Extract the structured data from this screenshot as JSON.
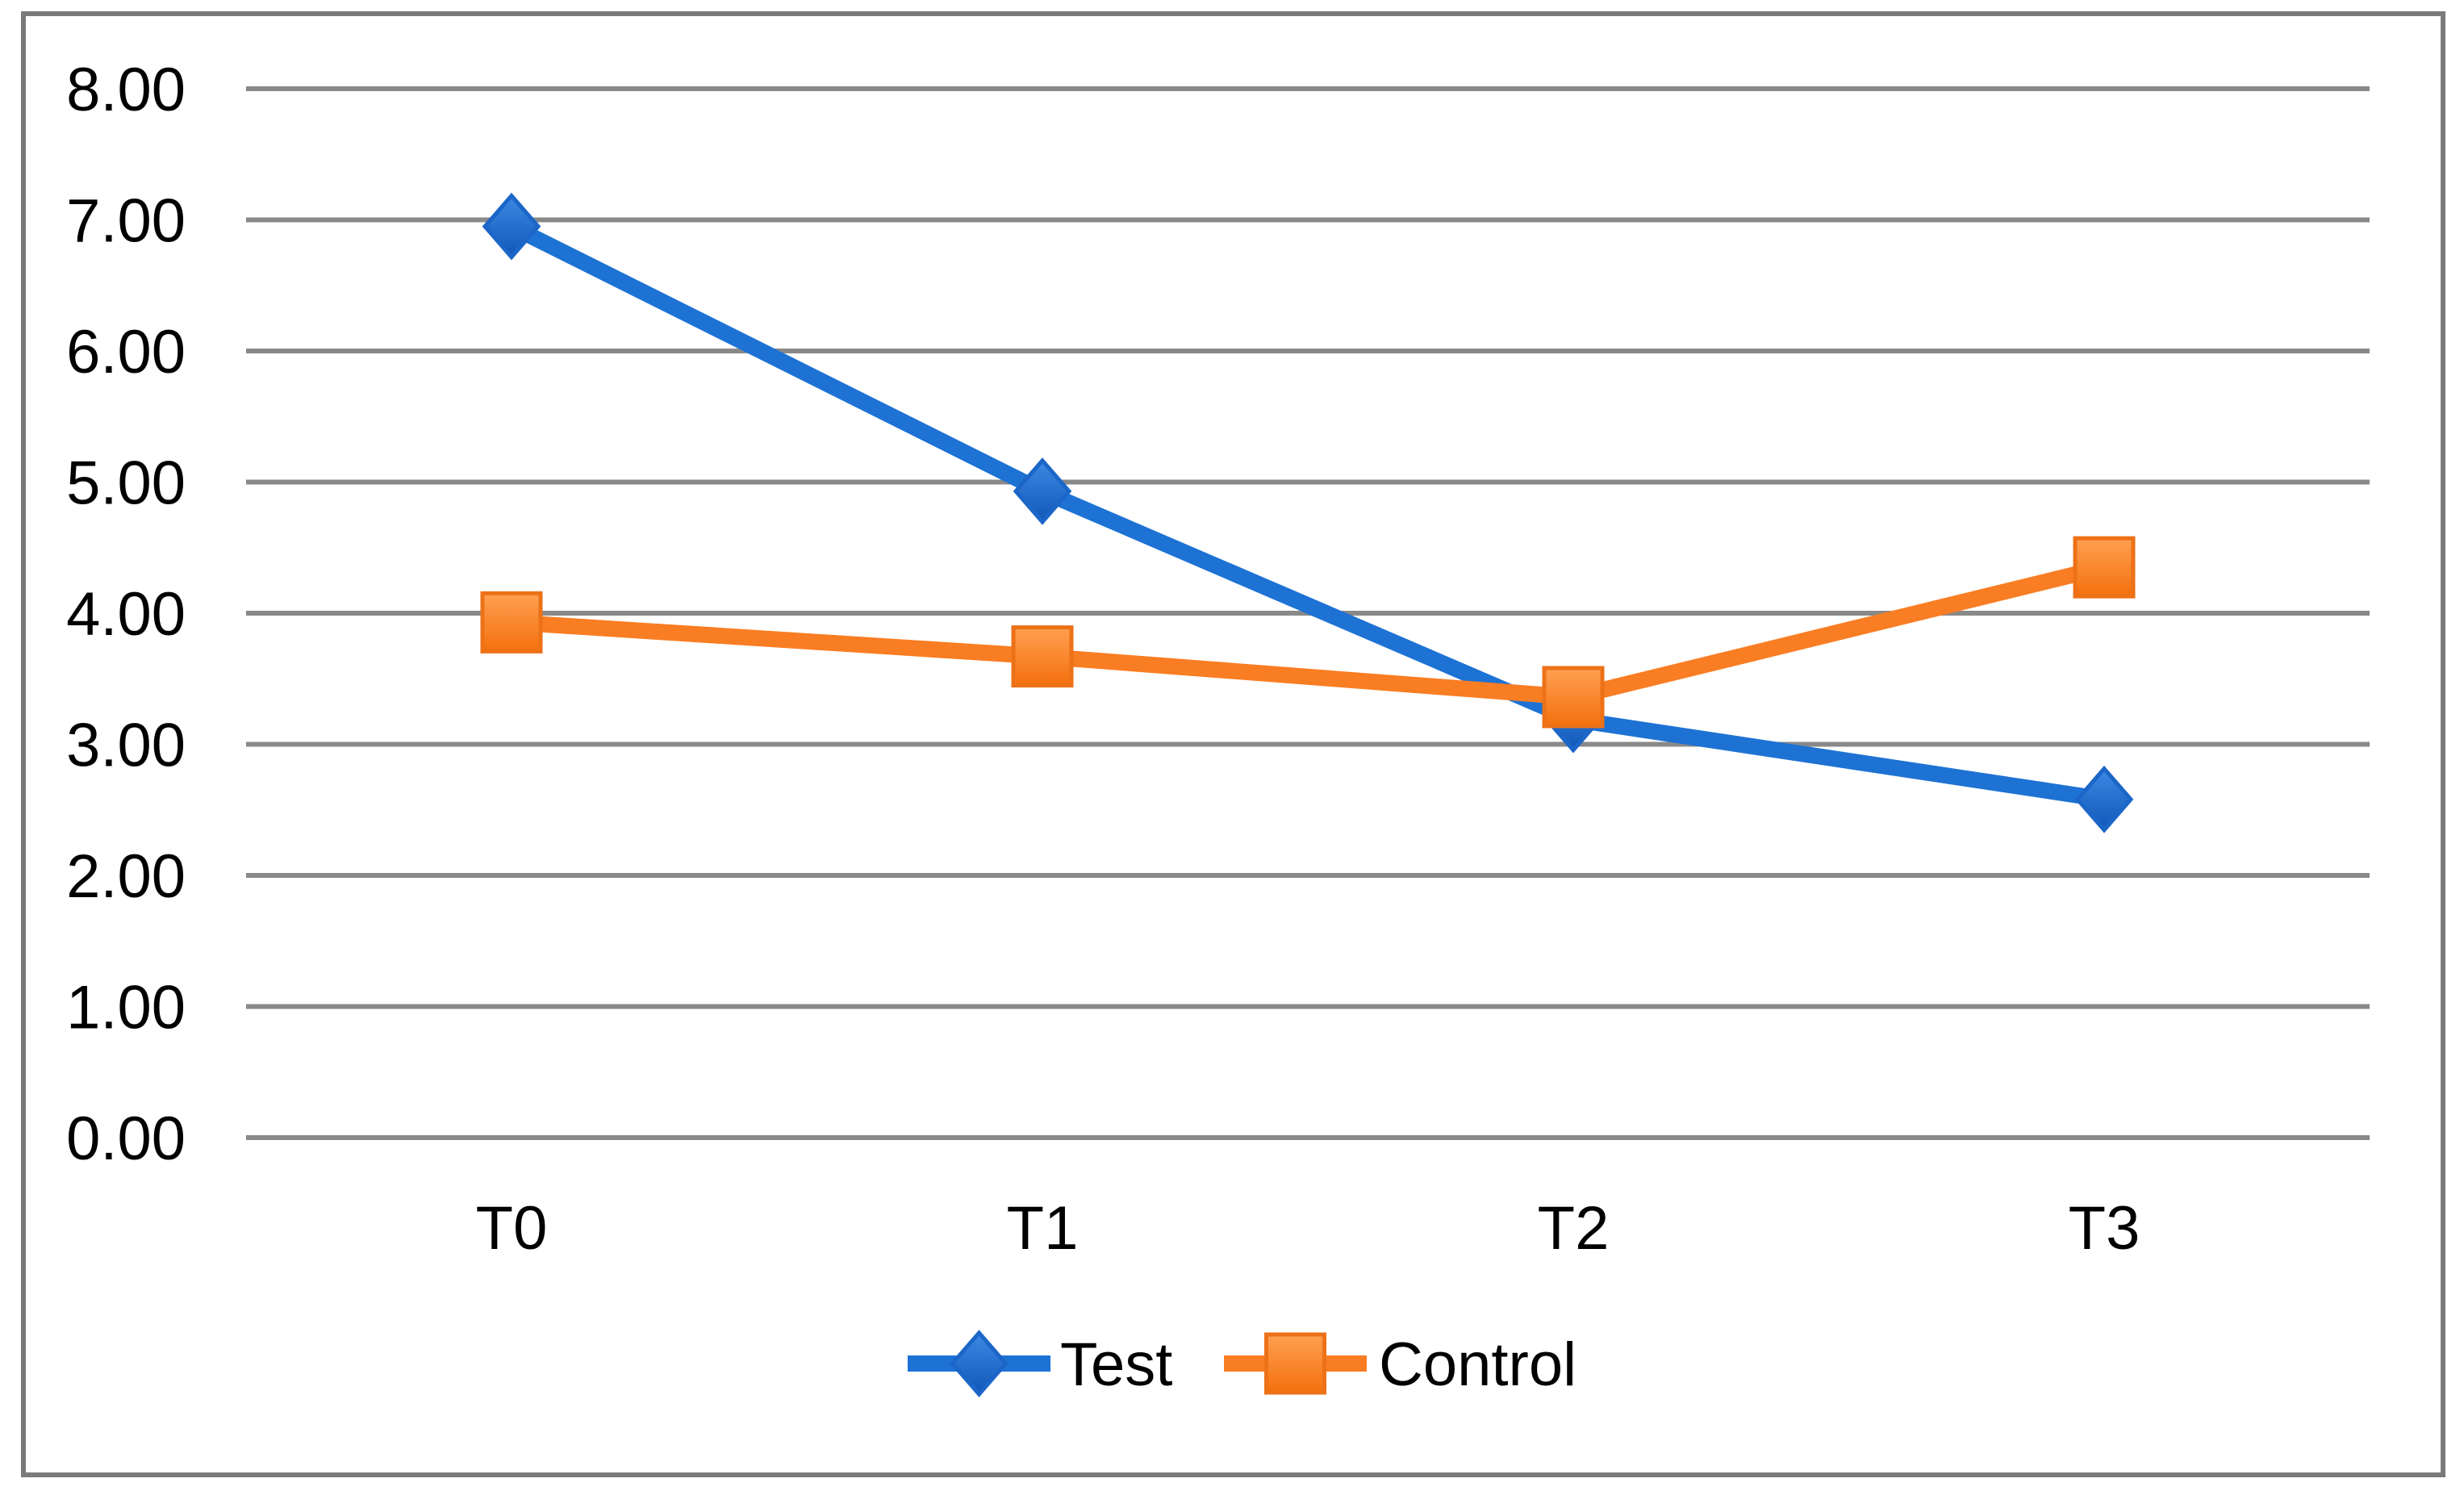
{
  "chart_data": {
    "type": "line",
    "title": "",
    "xlabel": "",
    "ylabel": "",
    "categories": [
      "T0",
      "T1",
      "T2",
      "T3"
    ],
    "series": [
      {
        "name": "Test",
        "values": [
          6.95,
          4.93,
          3.19,
          2.58
        ],
        "color": "#1D72D4",
        "marker": "diamond",
        "marker_gradient": [
          "#3B89E2",
          "#1158B8"
        ],
        "marker_stroke": "#1B66C8"
      },
      {
        "name": "Control",
        "values": [
          3.93,
          3.67,
          3.36,
          4.35
        ],
        "color": "#F97D23",
        "marker": "square",
        "marker_gradient": [
          "#FFA052",
          "#F4700D"
        ],
        "marker_stroke": "#ED7117"
      }
    ],
    "ylim": [
      0,
      8
    ],
    "y_tick_step": 1,
    "y_tick_labels": [
      "0.00",
      "1.00",
      "2.00",
      "3.00",
      "4.00",
      "5.00",
      "6.00",
      "7.00",
      "8.00"
    ],
    "grid": true,
    "legend_position": "bottom-center",
    "gridline_color": "#898989",
    "frame_color": "#7A7A7A",
    "text_color": "#000000",
    "background_color": "#FFFFFF"
  }
}
